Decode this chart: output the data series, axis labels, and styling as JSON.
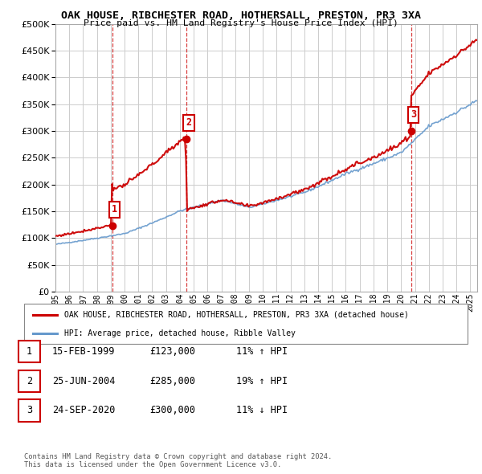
{
  "title": "OAK HOUSE, RIBCHESTER ROAD, HOTHERSALL, PRESTON, PR3 3XA",
  "subtitle": "Price paid vs. HM Land Registry's House Price Index (HPI)",
  "ytick_values": [
    0,
    50000,
    100000,
    150000,
    200000,
    250000,
    300000,
    350000,
    400000,
    450000,
    500000
  ],
  "ylim": [
    0,
    500000
  ],
  "xlim_start": 1995.0,
  "xlim_end": 2025.5,
  "x_ticks": [
    1995,
    1996,
    1997,
    1998,
    1999,
    2000,
    2001,
    2002,
    2003,
    2004,
    2005,
    2006,
    2007,
    2008,
    2009,
    2010,
    2011,
    2012,
    2013,
    2014,
    2015,
    2016,
    2017,
    2018,
    2019,
    2020,
    2021,
    2022,
    2023,
    2024,
    2025
  ],
  "sale_dates": [
    1999.12,
    2004.48,
    2020.73
  ],
  "sale_prices": [
    123000,
    285000,
    300000
  ],
  "sale_labels": [
    "1",
    "2",
    "3"
  ],
  "red_line_color": "#cc0000",
  "blue_line_color": "#6699cc",
  "grid_color": "#cccccc",
  "bg_color": "#ffffff",
  "legend_label_red": "OAK HOUSE, RIBCHESTER ROAD, HOTHERSALL, PRESTON, PR3 3XA (detached house)",
  "legend_label_blue": "HPI: Average price, detached house, Ribble Valley",
  "table_rows": [
    {
      "num": "1",
      "date": "15-FEB-1999",
      "price": "£123,000",
      "hpi": "11% ↑ HPI"
    },
    {
      "num": "2",
      "date": "25-JUN-2004",
      "price": "£285,000",
      "hpi": "19% ↑ HPI"
    },
    {
      "num": "3",
      "date": "24-SEP-2020",
      "price": "£300,000",
      "hpi": "11% ↓ HPI"
    }
  ],
  "footer": "Contains HM Land Registry data © Crown copyright and database right 2024.\nThis data is licensed under the Open Government Licence v3.0."
}
